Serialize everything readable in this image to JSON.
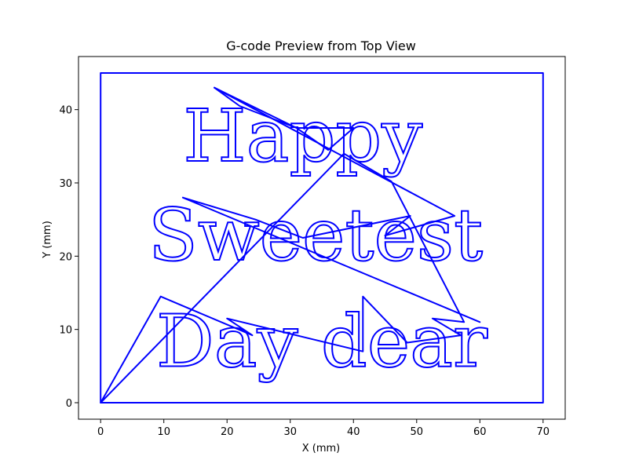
{
  "chart_data": {
    "type": "line",
    "title": "G-code Preview from Top View",
    "xlabel": "X (mm)",
    "ylabel": "Y (mm)",
    "xlim": [
      -3.5,
      73.5
    ],
    "ylim": [
      -2.25,
      47.25
    ],
    "xticks": [
      0,
      10,
      20,
      30,
      40,
      50,
      60,
      70
    ],
    "yticks": [
      0,
      10,
      20,
      30,
      40
    ],
    "grid": false,
    "line_color": "#0000ff",
    "series": [
      {
        "values": [
          {
            "x": 0,
            "y": 0
          },
          {
            "x": 70,
            "y": 0
          },
          {
            "x": 70,
            "y": 45
          },
          {
            "x": 0,
            "y": 45
          },
          {
            "x": 0,
            "y": 0
          }
        ]
      },
      {
        "values": [
          {
            "x": 0,
            "y": 0
          },
          {
            "x": 9.5,
            "y": 14.5
          },
          {
            "x": 24,
            "y": 9.2
          },
          {
            "x": 20,
            "y": 11.5
          },
          {
            "x": 41.5,
            "y": 7
          },
          {
            "x": 41.5,
            "y": 14.5
          },
          {
            "x": 48.5,
            "y": 8.2
          },
          {
            "x": 57,
            "y": 9.2
          },
          {
            "x": 52.5,
            "y": 11.5
          },
          {
            "x": 57.5,
            "y": 11
          },
          {
            "x": 46,
            "y": 30.2
          },
          {
            "x": 38.5,
            "y": 34
          },
          {
            "x": 0,
            "y": 0
          }
        ]
      },
      {
        "values": [
          {
            "x": 18,
            "y": 43
          },
          {
            "x": 56,
            "y": 25.5
          },
          {
            "x": 45,
            "y": 22.8
          },
          {
            "x": 49,
            "y": 25.5
          },
          {
            "x": 32,
            "y": 22.5
          },
          {
            "x": 24.5,
            "y": 25
          },
          {
            "x": 13,
            "y": 28
          },
          {
            "x": 60,
            "y": 11
          }
        ]
      },
      {
        "values": [
          {
            "x": 18,
            "y": 43
          },
          {
            "x": 31,
            "y": 37.5
          },
          {
            "x": 36,
            "y": 34.5
          },
          {
            "x": 40,
            "y": 37.5
          },
          {
            "x": 31,
            "y": 37.5
          },
          {
            "x": 22,
            "y": 40.5
          },
          {
            "x": 18,
            "y": 43
          }
        ]
      }
    ],
    "text_traces": [
      {
        "text": "Happy",
        "x": 32,
        "y": 33
      },
      {
        "text": "Sweetest",
        "x": 34,
        "y": 19.5
      },
      {
        "text": "Day dear",
        "x": 35,
        "y": 5
      }
    ]
  }
}
